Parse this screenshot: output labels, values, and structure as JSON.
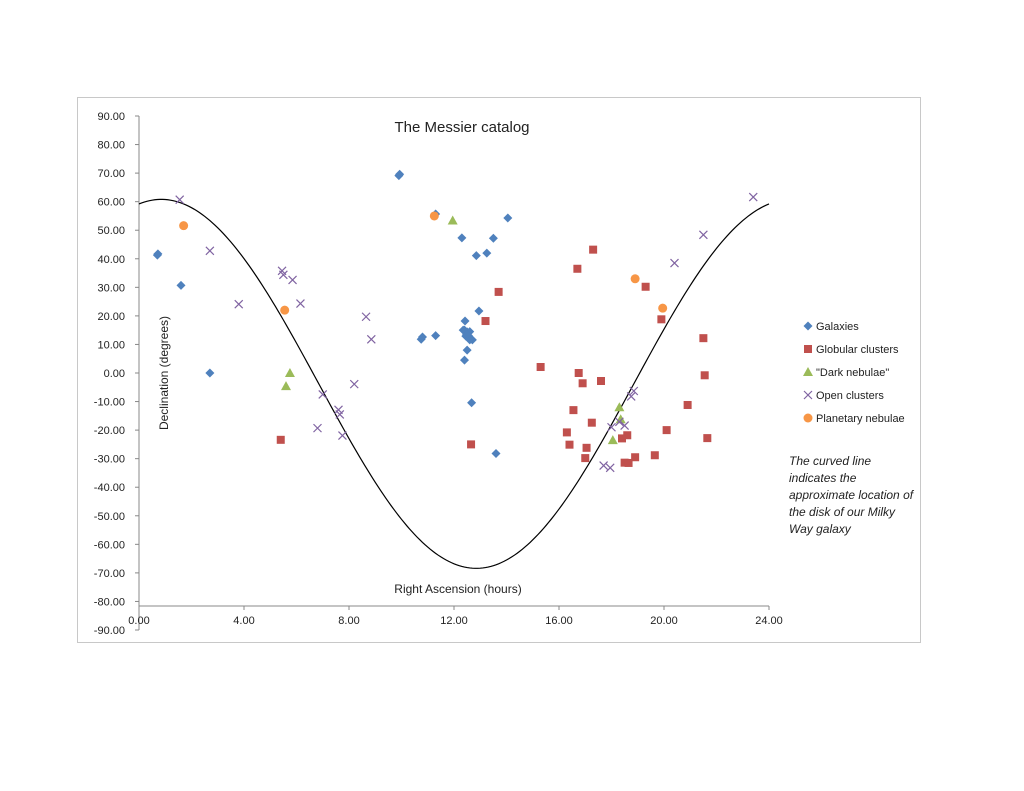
{
  "chart_data": {
    "type": "scatter",
    "title": "The Messier catalog",
    "xlabel": "Right Ascension (hours)",
    "ylabel": "Declination (degrees)",
    "xlim": [
      0,
      24
    ],
    "ylim": [
      -90,
      90
    ],
    "x_ticks": [
      "0.00",
      "4.00",
      "8.00",
      "12.00",
      "16.00",
      "20.00",
      "24.00"
    ],
    "x_tick_values": [
      0,
      4,
      8,
      12,
      16,
      20,
      24
    ],
    "y_ticks": [
      "90.00",
      "80.00",
      "70.00",
      "60.00",
      "50.00",
      "40.00",
      "30.00",
      "20.00",
      "10.00",
      "0.00",
      "-10.00",
      "-20.00",
      "-30.00",
      "-40.00",
      "-50.00",
      "-60.00",
      "-70.00",
      "-80.00",
      "-90.00"
    ],
    "y_tick_values": [
      90,
      80,
      70,
      60,
      50,
      40,
      30,
      20,
      10,
      0,
      -10,
      -20,
      -30,
      -40,
      -50,
      -60,
      -70,
      -80,
      -90
    ],
    "grid": false,
    "legend_position": "right",
    "series": [
      {
        "name": "Galaxies",
        "marker": "diamond",
        "color": "#4f81bd",
        "points": [
          [
            0.7,
            41.3
          ],
          [
            0.72,
            41.7
          ],
          [
            1.6,
            30.7
          ],
          [
            2.7,
            0.0
          ],
          [
            9.9,
            69.1
          ],
          [
            9.93,
            69.6
          ],
          [
            10.75,
            11.8
          ],
          [
            10.8,
            12.6
          ],
          [
            11.3,
            13.1
          ],
          [
            11.3,
            55.7
          ],
          [
            12.3,
            47.3
          ],
          [
            12.4,
            15.0
          ],
          [
            12.42,
            18.2
          ],
          [
            12.45,
            12.9
          ],
          [
            12.5,
            14.4
          ],
          [
            12.55,
            13.1
          ],
          [
            12.6,
            11.6
          ],
          [
            12.5,
            8.0
          ],
          [
            12.4,
            4.5
          ],
          [
            12.6,
            14.5
          ],
          [
            12.7,
            11.6
          ],
          [
            12.85,
            41.1
          ],
          [
            12.95,
            21.7
          ],
          [
            13.25,
            42.0
          ],
          [
            13.5,
            47.2
          ],
          [
            14.05,
            54.3
          ],
          [
            12.67,
            -10.4
          ],
          [
            13.6,
            -28.2
          ],
          [
            12.35,
            15.0
          ],
          [
            12.48,
            13.5
          ]
        ]
      },
      {
        "name": "Globular clusters",
        "marker": "square",
        "color": "#c0504d",
        "points": [
          [
            5.4,
            -23.4
          ],
          [
            12.65,
            -25.0
          ],
          [
            13.2,
            18.2
          ],
          [
            13.7,
            28.4
          ],
          [
            15.3,
            2.1
          ],
          [
            16.3,
            -20.8
          ],
          [
            16.4,
            -25.1
          ],
          [
            16.55,
            -13.0
          ],
          [
            16.7,
            36.5
          ],
          [
            16.75,
            0.0
          ],
          [
            16.9,
            -3.6
          ],
          [
            17.05,
            -26.2
          ],
          [
            17.0,
            -29.8
          ],
          [
            17.25,
            -17.4
          ],
          [
            17.3,
            43.2
          ],
          [
            17.6,
            -2.8
          ],
          [
            18.4,
            -22.9
          ],
          [
            18.5,
            -31.4
          ],
          [
            18.6,
            -21.8
          ],
          [
            18.65,
            -31.5
          ],
          [
            18.9,
            -29.5
          ],
          [
            19.3,
            30.2
          ],
          [
            19.65,
            -28.8
          ],
          [
            19.9,
            18.8
          ],
          [
            20.1,
            -20.0
          ],
          [
            20.9,
            -11.2
          ],
          [
            21.5,
            12.2
          ],
          [
            21.55,
            -0.8
          ],
          [
            21.65,
            -22.8
          ]
        ]
      },
      {
        "name": "\"Dark nebulae\"",
        "marker": "triangle",
        "color": "#9bbb59",
        "points": [
          [
            5.6,
            -4.6
          ],
          [
            5.75,
            0.0
          ],
          [
            11.95,
            53.4
          ],
          [
            18.05,
            -23.5
          ],
          [
            18.3,
            -12.0
          ],
          [
            18.35,
            -16.2
          ]
        ]
      },
      {
        "name": "Open clusters",
        "marker": "x",
        "color": "#8064a2",
        "points": [
          [
            1.55,
            60.7
          ],
          [
            2.7,
            42.8
          ],
          [
            3.8,
            24.1
          ],
          [
            5.45,
            35.8
          ],
          [
            5.5,
            34.4
          ],
          [
            5.85,
            32.6
          ],
          [
            6.15,
            24.3
          ],
          [
            6.8,
            -19.3
          ],
          [
            7.0,
            -7.5
          ],
          [
            7.6,
            -12.9
          ],
          [
            7.65,
            -14.5
          ],
          [
            7.75,
            -21.9
          ],
          [
            8.2,
            -3.9
          ],
          [
            8.65,
            19.7
          ],
          [
            8.85,
            11.8
          ],
          [
            17.7,
            -32.4
          ],
          [
            17.95,
            -33.2
          ],
          [
            18.0,
            -19.0
          ],
          [
            18.3,
            -17.1
          ],
          [
            18.5,
            -18.4
          ],
          [
            18.75,
            -8.2
          ],
          [
            18.85,
            -6.3
          ],
          [
            20.4,
            38.5
          ],
          [
            21.5,
            48.4
          ],
          [
            23.4,
            61.6
          ]
        ]
      },
      {
        "name": "Planetary nebulae",
        "marker": "circle",
        "color": "#f79646",
        "points": [
          [
            1.7,
            51.6
          ],
          [
            5.55,
            22.0
          ],
          [
            11.25,
            55.0
          ],
          [
            18.9,
            33.0
          ],
          [
            19.95,
            22.7
          ]
        ]
      }
    ],
    "curve": {
      "description": "sinusoidal galactic plane",
      "amplitude": 64.6,
      "offset": -3.8,
      "peak_x": 0.85
    },
    "annotation": "The curved line indicates the approximate location of the disk of our Milky Way galaxy"
  },
  "colors": {
    "galaxies": "#4f81bd",
    "globular": "#c0504d",
    "dark_nebulae": "#9bbb59",
    "open_clusters": "#8064a2",
    "planetary": "#f79646",
    "axis": "#888888",
    "curve": "#000000"
  }
}
